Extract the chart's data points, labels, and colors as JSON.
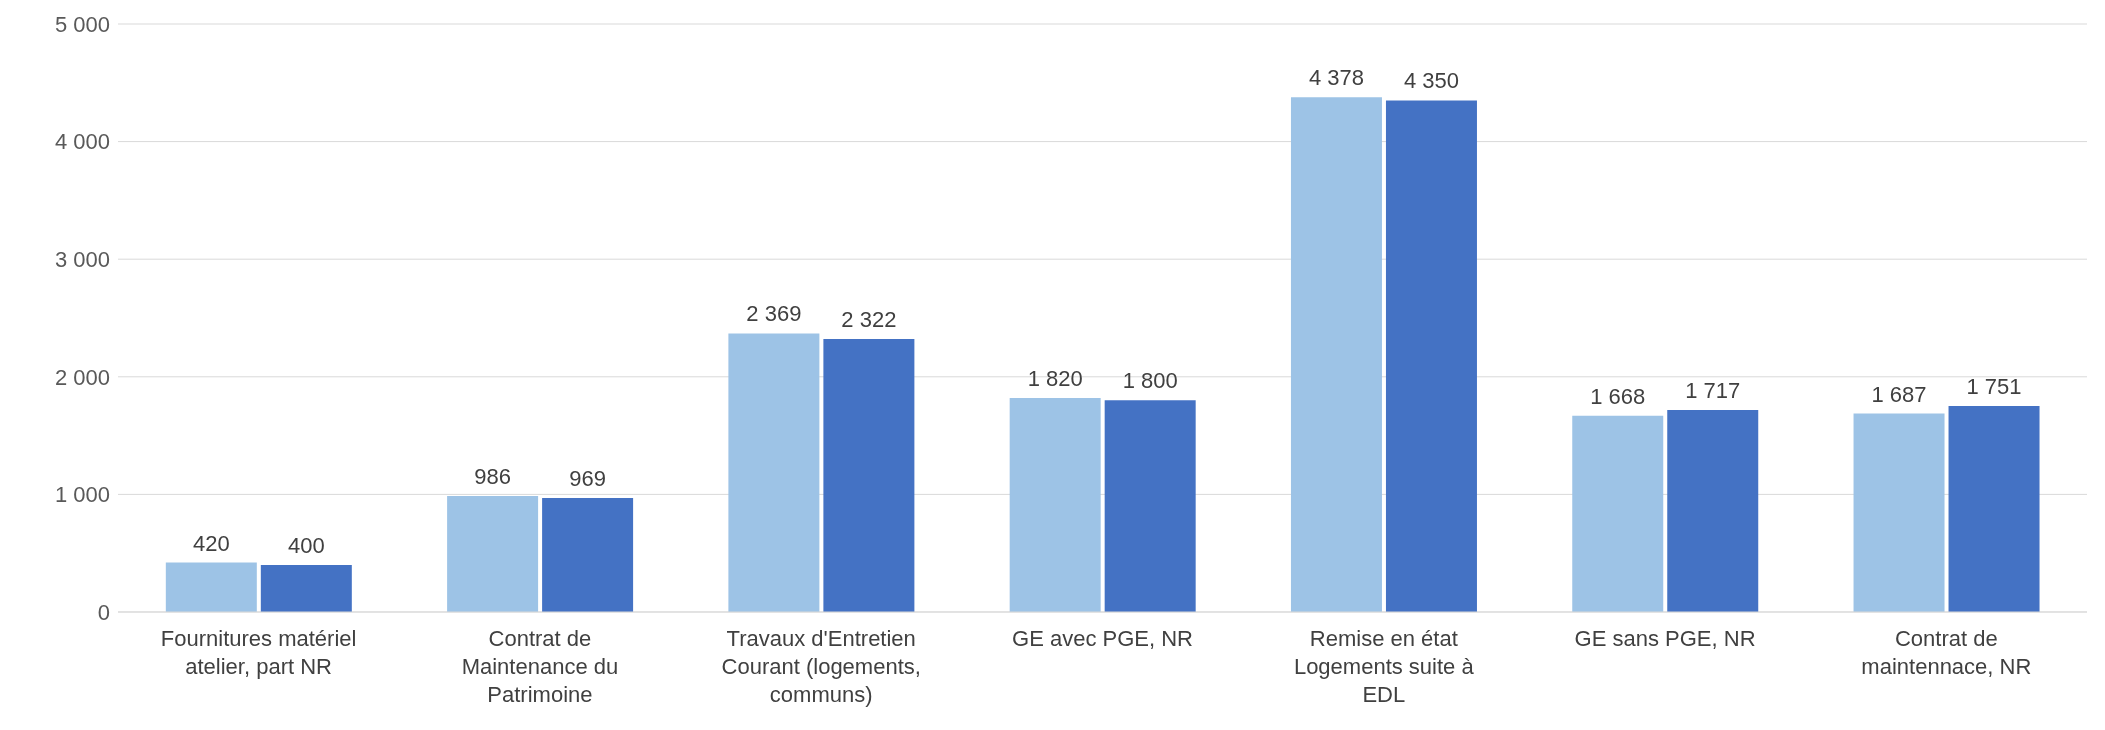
{
  "chart_data": {
    "type": "bar",
    "categories": [
      "Fournitures matériel atelier, part NR",
      "Contrat de Maintenance du Patrimoine",
      "Travaux d'Entretien Courant (logements, communs)",
      "GE avec PGE, NR",
      "Remise en état Logements suite à EDL",
      "GE sans PGE, NR",
      "Contrat de maintennace, NR"
    ],
    "series": [
      {
        "color": "#9dc3e6",
        "values": [
          420,
          986,
          2369,
          1820,
          4378,
          1668,
          1687
        ]
      },
      {
        "color": "#4472c4",
        "values": [
          400,
          969,
          2322,
          1800,
          4350,
          1717,
          1751
        ]
      }
    ],
    "ylim": [
      0,
      5000
    ],
    "yticks": [
      0,
      {
        "value": 1000,
        "label": "1 000"
      },
      {
        "value": 2000,
        "label": "2 000"
      },
      {
        "value": 3000,
        "label": "3 000"
      },
      {
        "value": 4000,
        "label": "4 000"
      },
      {
        "value": 5000,
        "label": "5 000"
      }
    ],
    "grid": "y",
    "legend": false,
    "data_labels": true
  }
}
